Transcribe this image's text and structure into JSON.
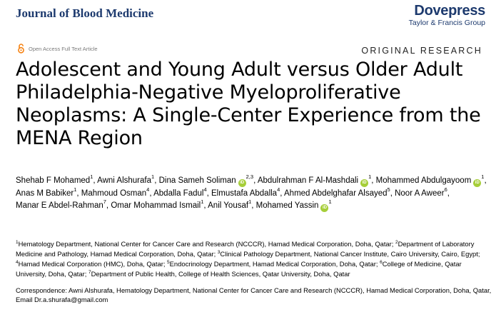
{
  "header": {
    "journal": "Journal of Blood Medicine",
    "publisher_name": "Dovepress",
    "publisher_sub": "Taylor & Francis Group"
  },
  "meta": {
    "open_access": "Open Access Full Text Article",
    "category": "ORIGINAL RESEARCH"
  },
  "title": "Adolescent and Young Adult versus Older Adult Philadelphia-Negative Myeloproliferative Neoplasms: A Single-Center Experience from the MENA Region",
  "authors": [
    {
      "name": "Shehab F Mohamed",
      "aff": "1",
      "orcid": false
    },
    {
      "name": "Awni Alshurafa",
      "aff": "1",
      "orcid": false
    },
    {
      "name": "Dina Sameh Soliman",
      "aff": "2,3",
      "orcid": true
    },
    {
      "name": "Abdulrahman F Al-Mashdali",
      "aff": "1",
      "orcid": true
    },
    {
      "name": "Mohammed Abdulgayoom",
      "aff": "1",
      "orcid": true
    },
    {
      "name": "Anas M Babiker",
      "aff": "1",
      "orcid": false
    },
    {
      "name": "Mahmoud Osman",
      "aff": "4",
      "orcid": false
    },
    {
      "name": "Abdalla Fadul",
      "aff": "4",
      "orcid": false
    },
    {
      "name": "Elmustafa Abdalla",
      "aff": "4",
      "orcid": false
    },
    {
      "name": "Ahmed Abdelghafar Alsayed",
      "aff": "5",
      "orcid": false
    },
    {
      "name": "Noor A Aweer",
      "aff": "6",
      "orcid": false
    },
    {
      "name": "Manar E Abdel-Rahman",
      "aff": "7",
      "orcid": false
    },
    {
      "name": "Omar Mohammad Ismail",
      "aff": "1",
      "orcid": false
    },
    {
      "name": "Anil Yousaf",
      "aff": "1",
      "orcid": false
    },
    {
      "name": "Mohamed Yassin",
      "aff": "1",
      "orcid": true
    }
  ],
  "orcid_label": "iD",
  "affiliations": [
    {
      "num": "1",
      "text": "Hematology Department, National Center for Cancer Care and Research (NCCCR), Hamad Medical Corporation, Doha, Qatar;"
    },
    {
      "num": "2",
      "text": "Department of Laboratory Medicine and Pathology, Hamad Medical Corporation, Doha, Qatar;"
    },
    {
      "num": "3",
      "text": "Clinical Pathology Department, National Cancer Institute, Cairo University, Cairo, Egypt;"
    },
    {
      "num": "4",
      "text": "Hamad Medical Corporation (HMC), Doha, Qatar;"
    },
    {
      "num": "5",
      "text": "Endocrinology Department, Hamad Medical Corporation, Doha, Qatar;"
    },
    {
      "num": "6",
      "text": "College of Medicine, Qatar University, Doha, Qatar;"
    },
    {
      "num": "7",
      "text": "Department of Public Health, College of Health Sciences, Qatar University, Doha, Qatar"
    }
  ],
  "correspondence": "Correspondence: Awni Alshurafa, Hematology Department, National Center for Cancer Care and Research (NCCCR), Hamad Medical Corporation, Doha, Qatar, Email Dr.a.shurafa@gmail.com",
  "colors": {
    "brand_blue": "#1d3a6e",
    "open_access_orange": "#f68212",
    "orcid_green": "#a6ce39"
  },
  "icons": {
    "open_access": "open-access-lock-icon",
    "orcid": "orcid-icon"
  }
}
